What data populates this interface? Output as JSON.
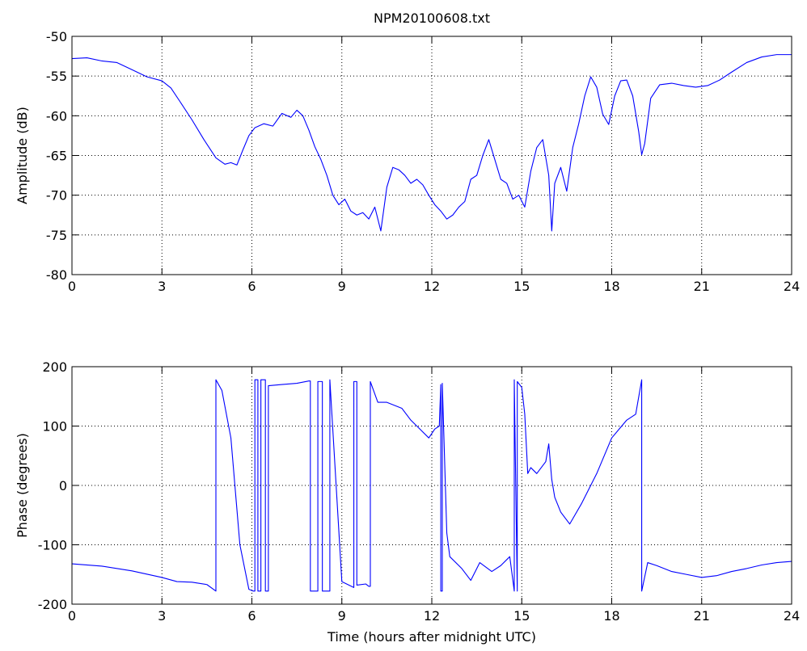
{
  "chart_data": [
    {
      "type": "line",
      "title": "NPM20100608.txt",
      "xlabel": "",
      "ylabel": "Amplitude (dB)",
      "xlim": [
        0,
        24
      ],
      "ylim": [
        -80,
        -50
      ],
      "xticks": [
        0,
        3,
        6,
        9,
        12,
        15,
        18,
        21,
        24
      ],
      "yticks": [
        -80,
        -75,
        -70,
        -65,
        -60,
        -55,
        -50
      ],
      "grid": true,
      "color": "#0000ff",
      "series": [
        {
          "x": [
            0,
            0.5,
            1,
            1.5,
            2,
            2.5,
            3,
            3.3,
            3.6,
            4,
            4.4,
            4.8,
            5.1,
            5.3,
            5.5,
            5.7,
            5.9,
            6.1,
            6.4,
            6.7,
            7,
            7.3,
            7.5,
            7.7,
            7.9,
            8.1,
            8.3,
            8.5,
            8.7,
            8.9,
            9.1,
            9.3,
            9.5,
            9.7,
            9.9,
            10.1,
            10.3,
            10.5,
            10.7,
            10.9,
            11.1,
            11.3,
            11.5,
            11.7,
            11.9,
            12.1,
            12.3,
            12.5,
            12.7,
            12.9,
            13.1,
            13.3,
            13.5,
            13.7,
            13.9,
            14.1,
            14.3,
            14.5,
            14.7,
            14.9,
            15.1,
            15.3,
            15.5,
            15.7,
            15.9,
            16.0,
            16.1,
            16.3,
            16.5,
            16.7,
            16.9,
            17.1,
            17.3,
            17.5,
            17.7,
            17.9,
            18.1,
            18.3,
            18.5,
            18.7,
            18.9,
            19.0,
            19.1,
            19.3,
            19.6,
            20,
            20.4,
            20.8,
            21.2,
            21.6,
            22,
            22.5,
            23,
            23.5,
            24
          ],
          "y": [
            -52.8,
            -52.7,
            -53.1,
            -53.3,
            -54.2,
            -55.1,
            -55.6,
            -56.5,
            -58.2,
            -60.5,
            -63,
            -65.3,
            -66.1,
            -65.9,
            -66.2,
            -64.3,
            -62.5,
            -61.5,
            -61,
            -61.3,
            -59.7,
            -60.2,
            -59.3,
            -60,
            -61.8,
            -63.9,
            -65.5,
            -67.5,
            -70,
            -71.2,
            -70.5,
            -72,
            -72.5,
            -72.2,
            -73,
            -71.5,
            -74.5,
            -69,
            -66.5,
            -66.8,
            -67.5,
            -68.5,
            -68,
            -68.7,
            -70,
            -71.2,
            -72,
            -73,
            -72.5,
            -71.5,
            -70.8,
            -68,
            -67.5,
            -65,
            -63,
            -65.5,
            -68,
            -68.5,
            -70.5,
            -70,
            -71.5,
            -67,
            -64,
            -63,
            -67.5,
            -74.5,
            -68.5,
            -66.5,
            -69.5,
            -64,
            -61,
            -57.5,
            -55.1,
            -56.4,
            -59.8,
            -61.1,
            -57.5,
            -55.6,
            -55.5,
            -57.5,
            -62,
            -64.9,
            -63.5,
            -57.8,
            -56.1,
            -55.9,
            -56.2,
            -56.4,
            -56.2,
            -55.5,
            -54.5,
            -53.3,
            -52.6,
            -52.3,
            -52.3
          ]
        }
      ]
    },
    {
      "type": "line",
      "title": "",
      "xlabel": "Time (hours after midnight UTC)",
      "ylabel": "Phase (degrees)",
      "xlim": [
        0,
        24
      ],
      "ylim": [
        -200,
        200
      ],
      "xticks": [
        0,
        3,
        6,
        9,
        12,
        15,
        18,
        21,
        24
      ],
      "yticks": [
        -200,
        -100,
        0,
        100,
        200
      ],
      "grid": true,
      "color": "#0000ff",
      "series": [
        {
          "x": [
            0,
            1,
            2,
            3,
            3.5,
            4,
            4.5,
            4.8,
            4.8,
            5.0,
            5.3,
            5.6,
            5.9,
            6.05,
            6.1,
            6.1,
            6.2,
            6.2,
            6.3,
            6.3,
            6.45,
            6.45,
            6.55,
            6.55,
            7,
            7.5,
            7.9,
            7.95,
            7.95,
            8.2,
            8.2,
            8.35,
            8.35,
            8.6,
            8.6,
            9.0,
            9.4,
            9.4,
            9.5,
            9.5,
            9.8,
            9.9,
            9.95,
            9.95,
            10.2,
            10.5,
            11,
            11.3,
            11.6,
            11.9,
            12.1,
            12.25,
            12.3,
            12.3,
            12.35,
            12.35,
            12.5,
            12.6,
            13,
            13.3,
            13.6,
            14,
            14.3,
            14.6,
            14.75,
            14.75,
            14.85,
            14.85,
            15.0,
            15.1,
            15.2,
            15.3,
            15.5,
            15.8,
            15.9,
            16.0,
            16.1,
            16.3,
            16.6,
            17,
            17.5,
            18,
            18.5,
            18.8,
            19.0,
            19.0,
            19.2,
            19.5,
            20,
            20.5,
            21,
            21.5,
            22,
            22.5,
            23,
            23.5,
            24
          ],
          "y": [
            -132,
            -136,
            -144,
            -155,
            -162,
            -163,
            -167,
            -178,
            178,
            160,
            80,
            -100,
            -175,
            -178,
            -178,
            178,
            178,
            -178,
            -178,
            178,
            178,
            -178,
            -178,
            168,
            170,
            172,
            176,
            176,
            -178,
            -178,
            175,
            175,
            -178,
            -178,
            178,
            -162,
            -172,
            175,
            175,
            -168,
            -166,
            -170,
            -170,
            175,
            140,
            140,
            130,
            110,
            95,
            80,
            95,
            100,
            170,
            -178,
            -178,
            172,
            -80,
            -120,
            -140,
            -160,
            -130,
            -145,
            -135,
            -120,
            -178,
            178,
            -178,
            175,
            165,
            120,
            20,
            30,
            20,
            40,
            70,
            10,
            -20,
            -45,
            -65,
            -30,
            20,
            80,
            110,
            120,
            178,
            -178,
            -130,
            -135,
            -145,
            -150,
            -155,
            -152,
            -145,
            -140,
            -134,
            -130,
            -128
          ]
        }
      ]
    }
  ]
}
